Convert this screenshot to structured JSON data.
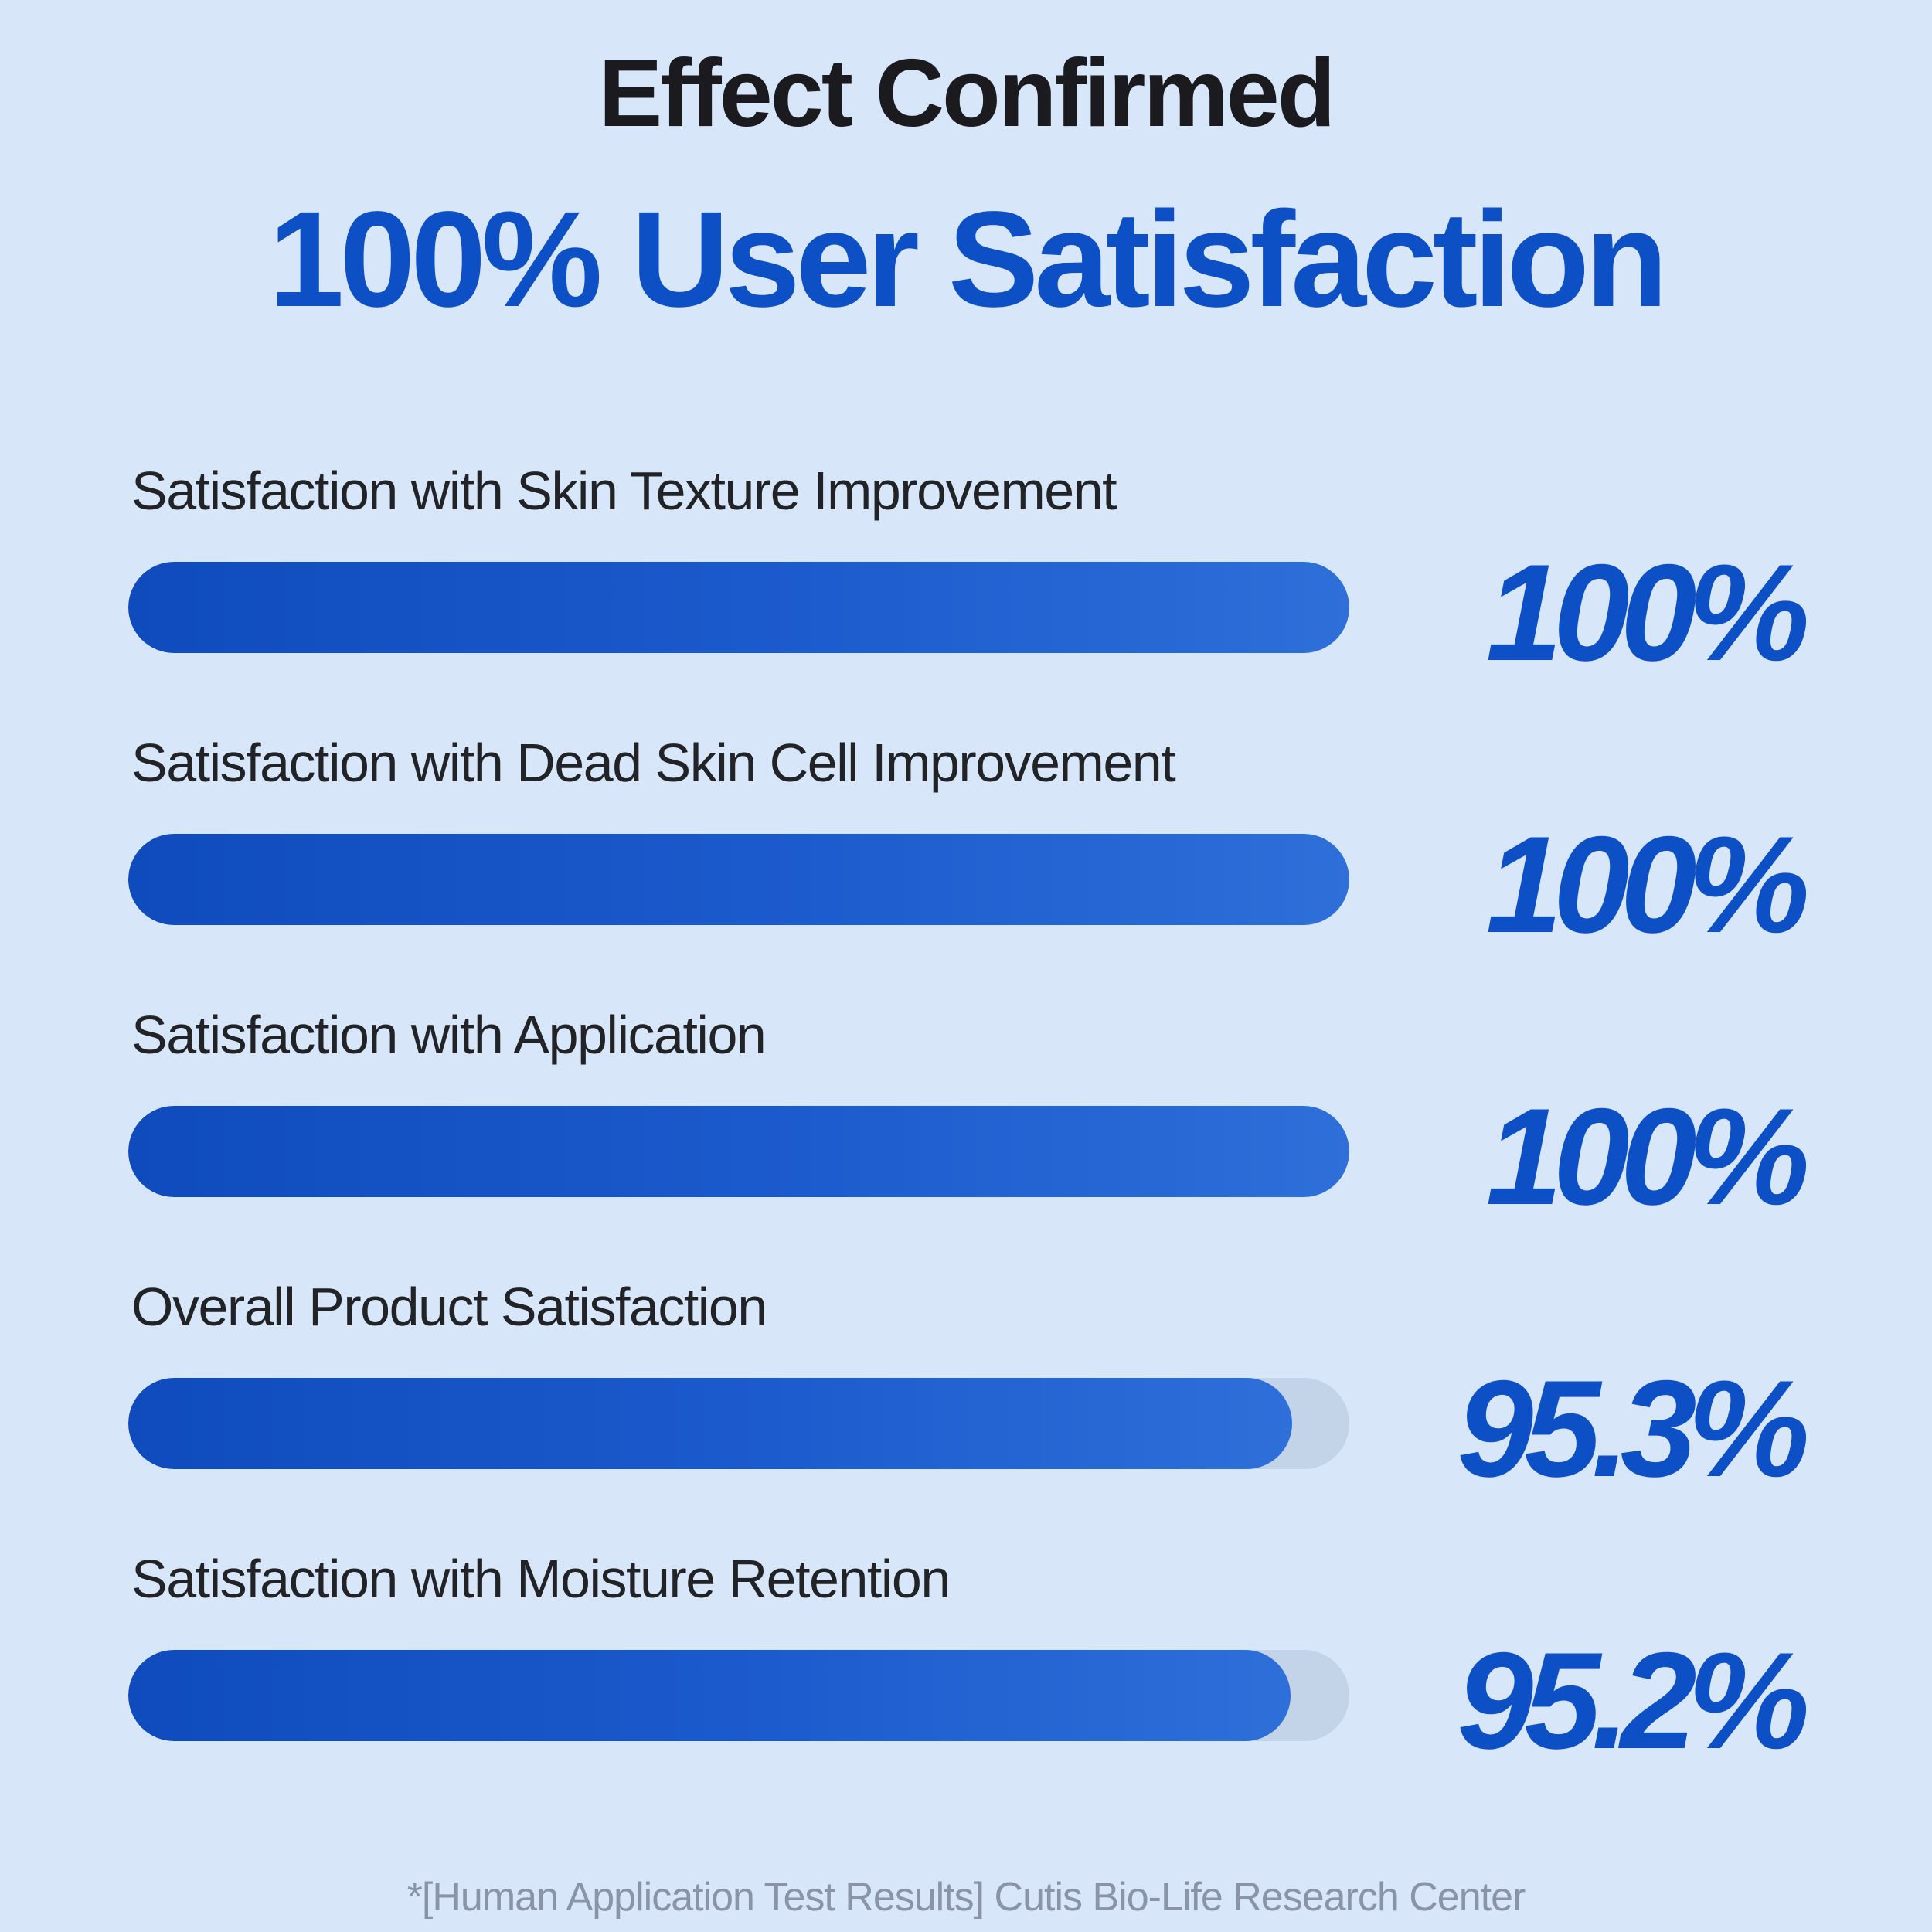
{
  "header": {
    "kicker": "Effect Confirmed",
    "headline": "100% User Satisfaction"
  },
  "colors": {
    "background": "#d7e6f9",
    "accent": "#0d4fc4",
    "bar_fill_start": "#0f4bbc",
    "bar_fill_end": "#2e6fd9",
    "bar_track": "#c3d3e8"
  },
  "chart_data": {
    "type": "bar",
    "orientation": "horizontal",
    "categories": [
      "Satisfaction with Skin Texture Improvement",
      "Satisfaction with Dead Skin Cell Improvement",
      "Satisfaction with Application",
      "Overall Product Satisfaction",
      "Satisfaction with Moisture Retention"
    ],
    "values": [
      100,
      100,
      100,
      95.3,
      95.2
    ],
    "value_labels": [
      "100%",
      "100%",
      "100%",
      "95.3%",
      "95.2%"
    ],
    "xlim": [
      0,
      100
    ],
    "grid": false
  },
  "footer": {
    "note": "*[Human Application Test Results] Cutis Bio-Life Research Center"
  }
}
